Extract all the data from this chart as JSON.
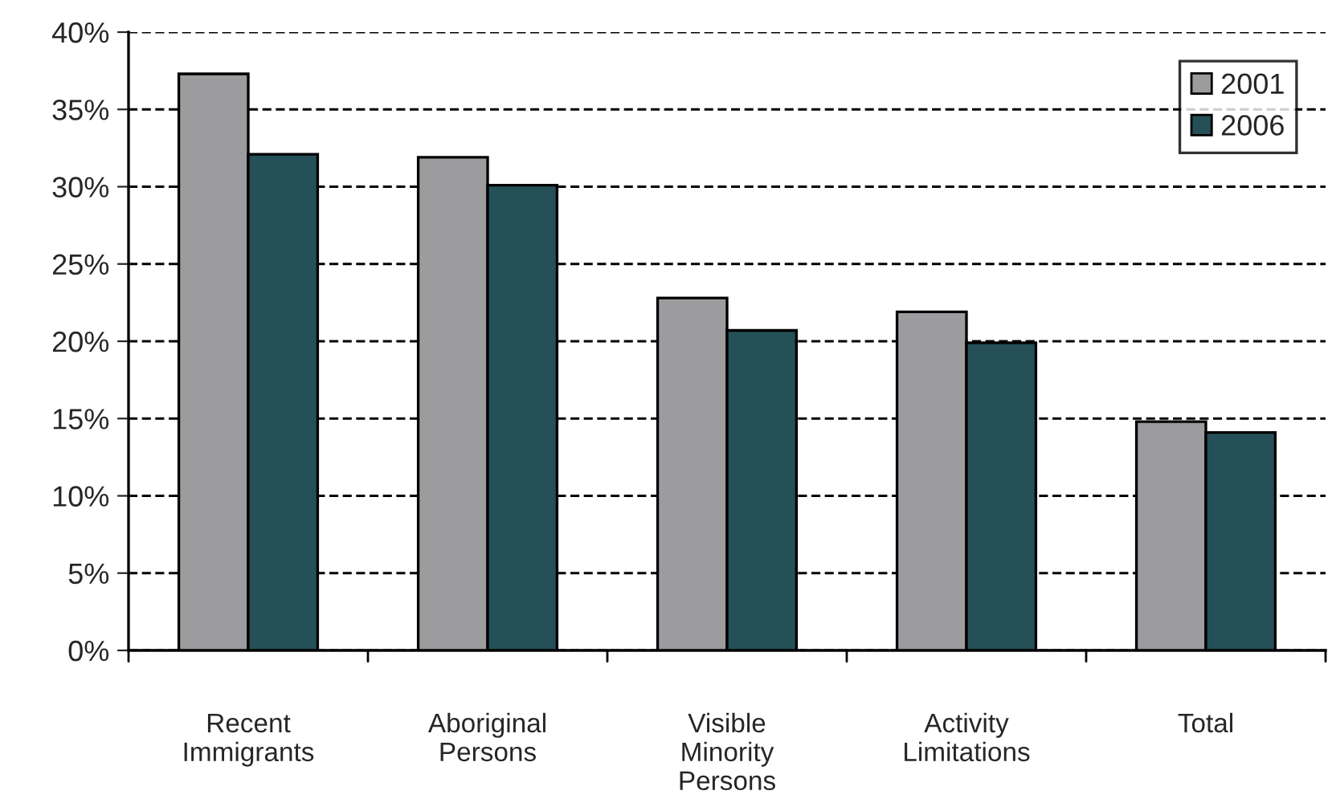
{
  "chart_data": {
    "type": "bar",
    "categories": [
      "Recent\nImmigrants",
      "Aboriginal\nPersons",
      "Visible\nMinority\nPersons",
      "Activity\nLimitations",
      "Total"
    ],
    "series": [
      {
        "name": "2001",
        "color": "#9c9c9e",
        "values": [
          37.3,
          31.9,
          22.8,
          21.9,
          14.8
        ]
      },
      {
        "name": "2006",
        "color": "#265058",
        "values": [
          32.1,
          30.1,
          20.7,
          19.9,
          14.1
        ]
      }
    ],
    "ylim": [
      0,
      40
    ],
    "yticks": [
      {
        "value": 0,
        "label": "0%"
      },
      {
        "value": 5,
        "label": "5%"
      },
      {
        "value": 10,
        "label": "10%"
      },
      {
        "value": 15,
        "label": "15%"
      },
      {
        "value": 20,
        "label": "20%"
      },
      {
        "value": 25,
        "label": "25%"
      },
      {
        "value": 30,
        "label": "30%"
      },
      {
        "value": 35,
        "label": "35%"
      },
      {
        "value": 40,
        "label": "40%"
      }
    ],
    "grid": "y",
    "legend": "top right"
  }
}
